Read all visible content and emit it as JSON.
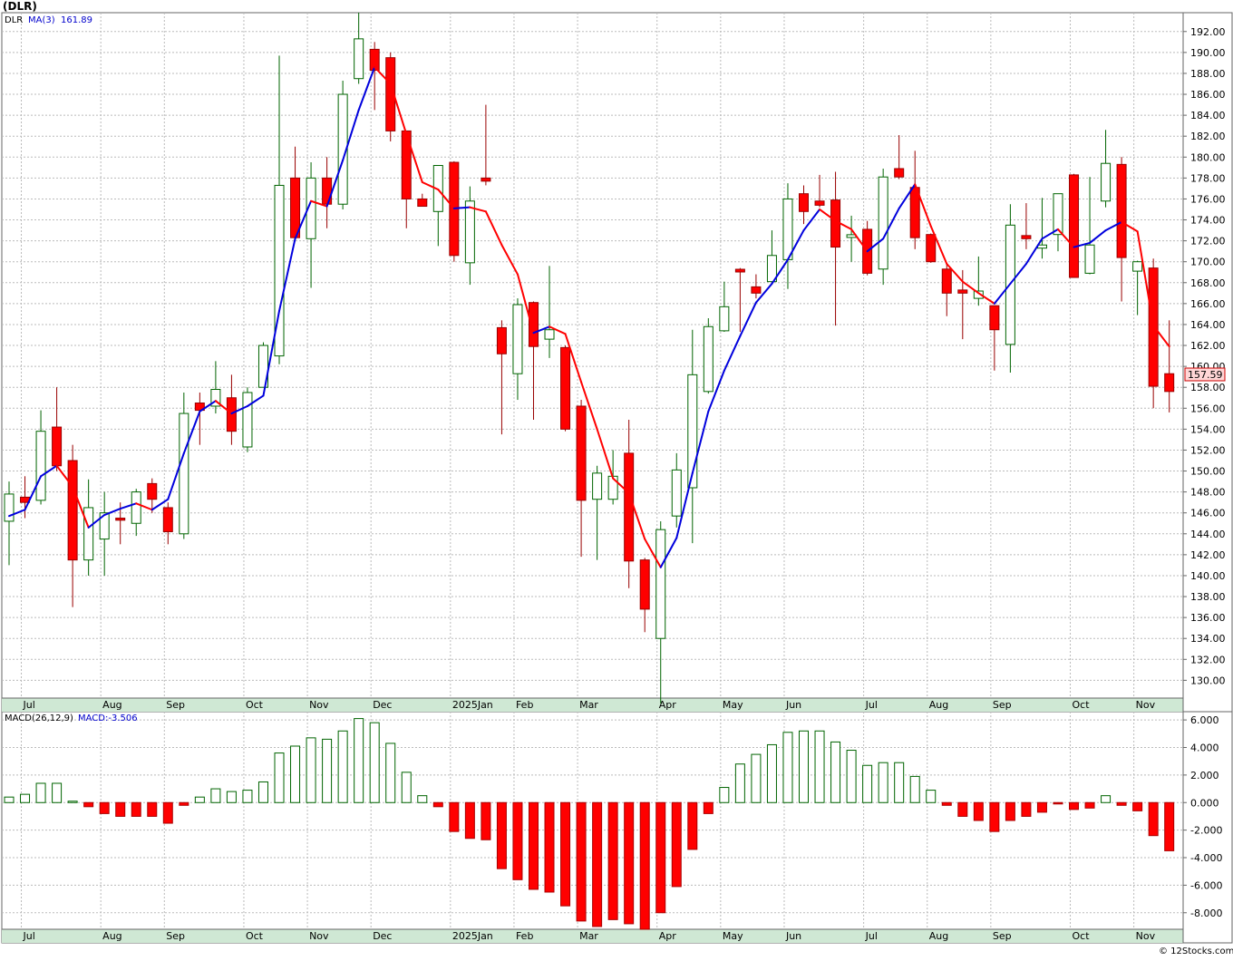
{
  "title": "(DLR)",
  "credit": "© 12Stocks.com",
  "colors": {
    "up_body": "#ffffff",
    "up_border": "#006400",
    "down_body": "#ff0000",
    "down_border": "#990000",
    "ma_up": "#0000dd",
    "ma_down": "#ff0000",
    "grid": "#bbbbbb",
    "axis_band": "#cfe8d4",
    "macd_pos_border": "#006400",
    "macd_neg_fill": "#ff0000"
  },
  "legend": {
    "symbol": "DLR",
    "ma_label": "MA(3)",
    "ma_value": "161.89"
  },
  "last_price_label": "157.59",
  "price_axis": {
    "min": 128.3,
    "max": 193.8,
    "ticks": [
      "130.00",
      "132.00",
      "134.00",
      "136.00",
      "138.00",
      "140.00",
      "142.00",
      "144.00",
      "146.00",
      "148.00",
      "150.00",
      "152.00",
      "154.00",
      "156.00",
      "158.00",
      "160.00",
      "162.00",
      "164.00",
      "166.00",
      "168.00",
      "170.00",
      "172.00",
      "174.00",
      "176.00",
      "178.00",
      "180.00",
      "182.00",
      "184.00",
      "186.00",
      "188.00",
      "190.00",
      "192.00"
    ]
  },
  "month_labels": [
    {
      "label": "Jul",
      "bar": 1
    },
    {
      "label": "Aug",
      "bar": 6
    },
    {
      "label": "Sep",
      "bar": 10
    },
    {
      "label": "Oct",
      "bar": 15
    },
    {
      "label": "Nov",
      "bar": 19
    },
    {
      "label": "Dec",
      "bar": 23
    },
    {
      "label": "2025Jan",
      "bar": 28
    },
    {
      "label": "Feb",
      "bar": 32
    },
    {
      "label": "Mar",
      "bar": 36
    },
    {
      "label": "Apr",
      "bar": 41
    },
    {
      "label": "May",
      "bar": 45
    },
    {
      "label": "Jun",
      "bar": 49
    },
    {
      "label": "Jul",
      "bar": 54
    },
    {
      "label": "Aug",
      "bar": 58
    },
    {
      "label": "Sep",
      "bar": 62
    },
    {
      "label": "Oct",
      "bar": 67
    },
    {
      "label": "Nov",
      "bar": 71
    }
  ],
  "macd": {
    "label": "MACD(26,12,9)",
    "value_label": "MACD:-3.506",
    "min": -9.2,
    "max": 6.6,
    "ticks": [
      "6.000",
      "4.000",
      "2.000",
      "0.000",
      "-2.000",
      "-4.000",
      "-6.000",
      "-8.000"
    ],
    "values": [
      0.4,
      0.6,
      1.4,
      1.4,
      0.1,
      -0.3,
      -0.8,
      -1.0,
      -1.0,
      -1.0,
      -1.5,
      -0.2,
      0.4,
      1.0,
      0.8,
      0.9,
      1.5,
      3.6,
      4.1,
      4.7,
      4.6,
      5.2,
      6.1,
      5.8,
      4.3,
      2.2,
      0.5,
      -0.3,
      -2.1,
      -2.6,
      -2.7,
      -4.8,
      -5.6,
      -6.3,
      -6.5,
      -7.5,
      -8.6,
      -9.0,
      -8.5,
      -8.8,
      -9.2,
      -8.0,
      -6.1,
      -3.4,
      -0.8,
      1.1,
      2.8,
      3.5,
      4.2,
      5.1,
      5.2,
      5.2,
      4.4,
      3.8,
      2.7,
      2.9,
      2.9,
      1.9,
      0.9,
      -0.2,
      -1.0,
      -1.3,
      -2.1,
      -1.3,
      -1.0,
      -0.7,
      -0.1,
      -0.5,
      -0.4,
      0.5,
      -0.2,
      -0.6,
      -2.4,
      -3.5
    ]
  },
  "chart_data": [
    {
      "type": "candlestick",
      "title": "(DLR)",
      "series_name": "DLR",
      "interval": "weekly",
      "y_range": [
        128.3,
        193.8
      ],
      "ohlc": [
        {
          "o": 145.2,
          "h": 149.0,
          "l": 141.0,
          "c": 147.8
        },
        {
          "o": 147.5,
          "h": 149.5,
          "l": 145.5,
          "c": 147.0
        },
        {
          "o": 147.2,
          "h": 155.8,
          "l": 146.8,
          "c": 153.8
        },
        {
          "o": 154.2,
          "h": 158.0,
          "l": 150.0,
          "c": 150.5
        },
        {
          "o": 151.0,
          "h": 152.5,
          "l": 137.0,
          "c": 141.5
        },
        {
          "o": 141.5,
          "h": 149.2,
          "l": 140.0,
          "c": 146.5
        },
        {
          "o": 143.5,
          "h": 148.0,
          "l": 140.0,
          "c": 146.0
        },
        {
          "o": 145.5,
          "h": 147.0,
          "l": 143.0,
          "c": 145.3
        },
        {
          "o": 145.0,
          "h": 148.3,
          "l": 143.8,
          "c": 148.0
        },
        {
          "o": 148.8,
          "h": 149.3,
          "l": 146.0,
          "c": 147.3
        },
        {
          "o": 146.5,
          "h": 147.0,
          "l": 143.0,
          "c": 144.2
        },
        {
          "o": 144.0,
          "h": 157.5,
          "l": 143.5,
          "c": 155.5
        },
        {
          "o": 156.5,
          "h": 157.5,
          "l": 152.5,
          "c": 155.8
        },
        {
          "o": 156.2,
          "h": 160.5,
          "l": 155.5,
          "c": 157.8
        },
        {
          "o": 157.0,
          "h": 159.2,
          "l": 152.5,
          "c": 153.8
        },
        {
          "o": 152.3,
          "h": 158.0,
          "l": 151.8,
          "c": 157.5
        },
        {
          "o": 158.0,
          "h": 162.3,
          "l": 158.0,
          "c": 162.0
        },
        {
          "o": 161.0,
          "h": 189.7,
          "l": 160.2,
          "c": 177.3
        },
        {
          "o": 178.0,
          "h": 181.0,
          "l": 172.0,
          "c": 172.3
        },
        {
          "o": 172.2,
          "h": 179.5,
          "l": 167.5,
          "c": 178.0
        },
        {
          "o": 178.0,
          "h": 180.0,
          "l": 173.2,
          "c": 175.5
        },
        {
          "o": 175.5,
          "h": 187.3,
          "l": 175.0,
          "c": 186.0
        },
        {
          "o": 187.5,
          "h": 193.8,
          "l": 187.0,
          "c": 191.3
        },
        {
          "o": 190.3,
          "h": 191.0,
          "l": 184.5,
          "c": 188.3
        },
        {
          "o": 189.5,
          "h": 190.0,
          "l": 181.5,
          "c": 182.5
        },
        {
          "o": 182.5,
          "h": 182.5,
          "l": 173.2,
          "c": 176.0
        },
        {
          "o": 176.0,
          "h": 176.5,
          "l": 175.5,
          "c": 175.3
        },
        {
          "o": 174.8,
          "h": 179.2,
          "l": 171.5,
          "c": 179.2
        },
        {
          "o": 179.5,
          "h": 179.6,
          "l": 170.0,
          "c": 170.6
        },
        {
          "o": 169.9,
          "h": 177.2,
          "l": 167.8,
          "c": 175.8
        },
        {
          "o": 178.0,
          "h": 185.0,
          "l": 177.3,
          "c": 177.7
        },
        {
          "o": 163.7,
          "h": 164.4,
          "l": 153.5,
          "c": 161.2
        },
        {
          "o": 159.3,
          "h": 166.5,
          "l": 156.8,
          "c": 165.9
        },
        {
          "o": 166.1,
          "h": 166.2,
          "l": 154.9,
          "c": 161.9
        },
        {
          "o": 162.6,
          "h": 169.6,
          "l": 160.8,
          "c": 163.5
        },
        {
          "o": 161.8,
          "h": 162.0,
          "l": 153.8,
          "c": 154.0
        },
        {
          "o": 156.2,
          "h": 156.8,
          "l": 141.8,
          "c": 147.2
        },
        {
          "o": 147.3,
          "h": 150.5,
          "l": 141.5,
          "c": 149.8
        },
        {
          "o": 147.3,
          "h": 152.0,
          "l": 146.8,
          "c": 149.5
        },
        {
          "o": 151.7,
          "h": 154.9,
          "l": 138.8,
          "c": 141.4
        },
        {
          "o": 141.5,
          "h": 141.7,
          "l": 134.6,
          "c": 136.8
        },
        {
          "o": 134.0,
          "h": 145.2,
          "l": 127.8,
          "c": 144.4
        },
        {
          "o": 145.7,
          "h": 151.7,
          "l": 144.6,
          "c": 150.1
        },
        {
          "o": 148.4,
          "h": 163.5,
          "l": 143.1,
          "c": 159.2
        },
        {
          "o": 157.6,
          "h": 164.6,
          "l": 157.4,
          "c": 163.8
        },
        {
          "o": 163.4,
          "h": 168.1,
          "l": 163.3,
          "c": 165.7
        },
        {
          "o": 169.2,
          "h": 169.4,
          "l": 163.3,
          "c": 169.1
        },
        {
          "o": 167.6,
          "h": 168.8,
          "l": 166.5,
          "c": 167.0
        },
        {
          "o": 168.1,
          "h": 173.0,
          "l": 167.9,
          "c": 170.6
        },
        {
          "o": 170.2,
          "h": 177.5,
          "l": 167.4,
          "c": 176.0
        },
        {
          "o": 176.5,
          "h": 177.3,
          "l": 173.6,
          "c": 174.8
        },
        {
          "o": 175.8,
          "h": 178.3,
          "l": 175.2,
          "c": 175.4
        },
        {
          "o": 175.9,
          "h": 178.6,
          "l": 163.9,
          "c": 171.4
        },
        {
          "o": 172.4,
          "h": 174.4,
          "l": 170.0,
          "c": 172.5
        },
        {
          "o": 173.1,
          "h": 173.9,
          "l": 168.7,
          "c": 168.9
        },
        {
          "o": 169.3,
          "h": 178.9,
          "l": 167.8,
          "c": 178.1
        },
        {
          "o": 178.9,
          "h": 182.1,
          "l": 177.9,
          "c": 178.1
        },
        {
          "o": 177.1,
          "h": 180.6,
          "l": 171.2,
          "c": 172.3
        },
        {
          "o": 172.6,
          "h": 172.7,
          "l": 169.9,
          "c": 170.0
        },
        {
          "o": 169.3,
          "h": 169.9,
          "l": 164.8,
          "c": 167.0
        },
        {
          "o": 167.3,
          "h": 169.2,
          "l": 162.6,
          "c": 167.0
        },
        {
          "o": 166.5,
          "h": 170.5,
          "l": 165.8,
          "c": 167.2
        },
        {
          "o": 165.8,
          "h": 165.8,
          "l": 159.6,
          "c": 163.5
        },
        {
          "o": 162.1,
          "h": 175.5,
          "l": 159.4,
          "c": 173.5
        },
        {
          "o": 172.5,
          "h": 175.6,
          "l": 171.2,
          "c": 172.2
        },
        {
          "o": 171.3,
          "h": 176.1,
          "l": 170.3,
          "c": 171.6
        },
        {
          "o": 172.6,
          "h": 176.5,
          "l": 171.0,
          "c": 176.5
        },
        {
          "o": 178.3,
          "h": 178.4,
          "l": 168.5,
          "c": 168.5
        },
        {
          "o": 168.9,
          "h": 178.1,
          "l": 168.8,
          "c": 171.6
        },
        {
          "o": 175.8,
          "h": 182.6,
          "l": 175.2,
          "c": 179.4
        },
        {
          "o": 179.3,
          "h": 180.0,
          "l": 166.2,
          "c": 170.4
        },
        {
          "o": 169.1,
          "h": 170.1,
          "l": 164.9,
          "c": 170.0
        },
        {
          "o": 169.4,
          "h": 170.3,
          "l": 156.0,
          "c": 158.1
        },
        {
          "o": 159.3,
          "h": 164.4,
          "l": 155.6,
          "c": 157.6
        }
      ],
      "ma3": [
        145.7,
        146.3,
        149.5,
        150.5,
        148.5,
        144.6,
        145.8,
        146.4,
        146.9,
        146.3,
        147.3,
        151.7,
        155.7,
        156.7,
        155.5,
        156.2,
        157.2,
        165.3,
        172.2,
        175.8,
        175.3,
        179.7,
        184.5,
        188.6,
        187.0,
        182.2,
        177.6,
        176.9,
        175.1,
        175.2,
        174.8,
        171.6,
        168.8,
        163.2,
        163.8,
        163.1,
        158.5,
        154.0,
        149.3,
        147.9,
        143.5,
        140.8,
        143.6,
        149.8,
        155.7,
        159.6,
        162.9,
        166.1,
        167.9,
        170.2,
        173.0,
        175.0,
        173.9,
        173.1,
        171.0,
        172.2,
        175.1,
        177.4,
        173.4,
        169.8,
        168.1,
        167.0,
        166.0,
        167.9,
        169.8,
        172.2,
        173.1,
        171.4,
        171.8,
        173.0,
        173.8,
        172.9,
        163.9,
        161.9
      ]
    },
    {
      "type": "bar",
      "title": "MACD(26,12,9)",
      "value_label": "MACD:-3.506",
      "y_range": [
        -9.2,
        6.6
      ],
      "values_ref": "macd.values"
    }
  ]
}
